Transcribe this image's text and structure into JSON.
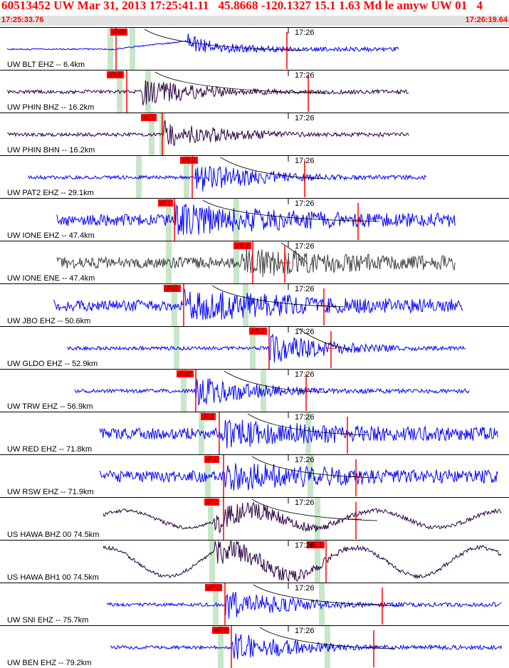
{
  "header": {
    "event_line": "60513452 UW Mar 31, 2013 17:25:41.11   45.8668 -120.1327 15.1 1.63 Md le amyw UW 01   4",
    "start_time": "17:25:33.76",
    "end_time": "17:26:19.64"
  },
  "colors": {
    "title_red": "#ff0000",
    "trace_blue": "#0000ff",
    "trace_dark": "#2a0040",
    "trace_gray": "#404040",
    "window_green": "#c8e6c8",
    "pick_red": "#ff0000"
  },
  "panels": [
    {
      "station": "UW BLT EHZ -- 6.4km",
      "time_label": "17:26",
      "pick": "iPd0",
      "color": "blue"
    },
    {
      "station": "UW PHIN BHZ -- 16.2km",
      "time_label": "17:26",
      "pick": "iPd0",
      "color": "dark"
    },
    {
      "station": "UW PHIN BHN -- 16.2km",
      "time_label": "17:26",
      "pick": "iS 1",
      "color": "dark"
    },
    {
      "station": "UW PAT2 EHZ -- 29.1km",
      "time_label": "17:26",
      "pick": "eS 2",
      "color": "blue"
    },
    {
      "station": "UW IONE EHZ -- 47.4km",
      "time_label": "17:26",
      "pick": "iP 1",
      "color": "blue"
    },
    {
      "station": "UW IONE ENE -- 47.4km",
      "time_label": "17:26",
      "pick": "eS 2",
      "color": "gray"
    },
    {
      "station": "UW JBO EHZ -- 50.6km",
      "time_label": "17:26",
      "pick": "iPd1",
      "color": "blue"
    },
    {
      "station": "UW GLDO EHZ -- 52.9km",
      "time_label": "17:26",
      "pick": "eS 2",
      "color": "blue"
    },
    {
      "station": "UW TRW EHZ -- 56.9km",
      "time_label": "17:26",
      "pick": "iPd0",
      "color": "blue"
    },
    {
      "station": "UW RED EHZ -- 71.8km",
      "time_label": "17:26",
      "pick": "iP 1",
      "color": "blue"
    },
    {
      "station": "UW RSW EHZ -- 71.9km",
      "time_label": "17:26",
      "pick": "iP 1",
      "color": "blue"
    },
    {
      "station": "US HAWA BHZ 00 74.5km",
      "time_label": "17:26",
      "pick": "iP 1",
      "color": "dark"
    },
    {
      "station": "US HAWA BH1 00 74.5km",
      "time_label": "17:26",
      "pick": "eS 1",
      "color": "dark"
    },
    {
      "station": "UW SNI EHZ -- 75.7km",
      "time_label": "17:26",
      "pick": "eP 2",
      "color": "blue"
    },
    {
      "station": "UW BEN EHZ -- 79.2km",
      "time_label": "17:26",
      "pick": "eP 2",
      "color": "blue"
    }
  ]
}
